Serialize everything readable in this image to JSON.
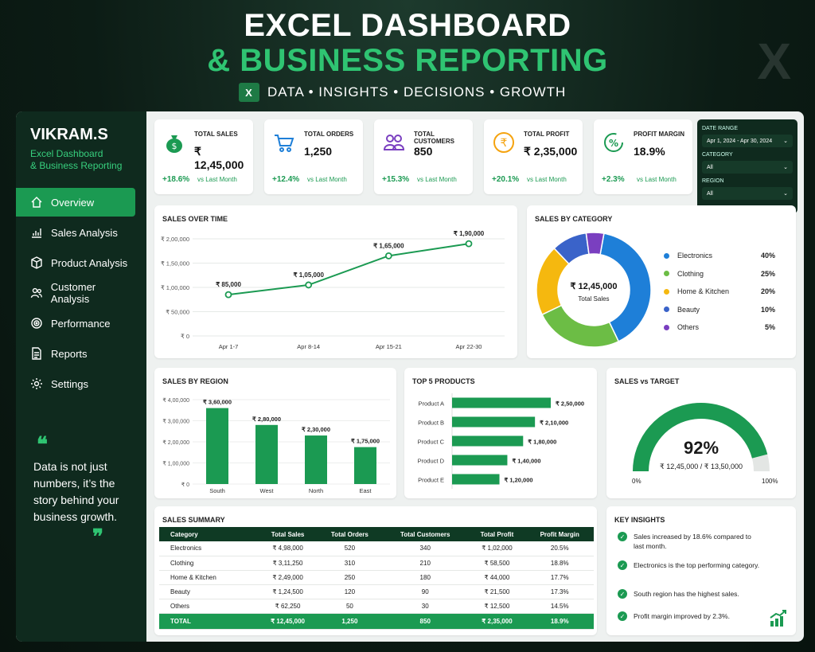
{
  "hero": {
    "line1": "EXCEL DASHBOARD",
    "line2": "& BUSINESS REPORTING",
    "tagline": "DATA • INSIGHTS • DECISIONS • GROWTH",
    "excel_icon": "X"
  },
  "sidebar": {
    "brand": "VIKRAM.S",
    "sub1": "Excel Dashboard",
    "sub2": "& Business Reporting",
    "items": [
      {
        "label": "Overview",
        "icon": "home-icon"
      },
      {
        "label": "Sales Analysis",
        "icon": "bar-chart-icon"
      },
      {
        "label": "Product Analysis",
        "icon": "box-icon"
      },
      {
        "label": "Customer Analysis",
        "icon": "users-icon"
      },
      {
        "label": "Performance",
        "icon": "target-icon"
      },
      {
        "label": "Reports",
        "icon": "document-icon"
      },
      {
        "label": "Settings",
        "icon": "gear-icon"
      }
    ],
    "quote": "Data is not just numbers, it’s the story behind your business growth.",
    "quote_open": "❝",
    "quote_close": "❞"
  },
  "kpis": [
    {
      "label": "TOTAL SALES",
      "value": "₹ 12,45,000",
      "change": "+18.6%",
      "vs": "vs Last Month",
      "icon": "money-bag-icon"
    },
    {
      "label": "TOTAL ORDERS",
      "value": "1,250",
      "change": "+12.4%",
      "vs": "vs Last Month",
      "icon": "cart-icon"
    },
    {
      "label": "TOTAL CUSTOMERS",
      "value": "850",
      "change": "+15.3%",
      "vs": "vs Last Month",
      "icon": "users-icon"
    },
    {
      "label": "TOTAL PROFIT",
      "value": "₹ 2,35,000",
      "change": "+20.1%",
      "vs": "vs Last Month",
      "icon": "rupee-icon"
    },
    {
      "label": "PROFIT MARGIN",
      "value": "18.9%",
      "change": "+2.3%",
      "vs": "vs Last Month",
      "icon": "percent-icon"
    }
  ],
  "filters": {
    "date_label": "DATE RANGE",
    "date_value": "Apr 1, 2024 - Apr 30, 2024",
    "category_label": "CATEGORY",
    "category_value": "All",
    "region_label": "REGION",
    "region_value": "All"
  },
  "sales_over_time": {
    "title": "SALES OVER TIME"
  },
  "sales_by_category": {
    "title": "SALES BY CATEGORY",
    "center_value": "₹ 12,45,000",
    "center_label": "Total Sales"
  },
  "sales_by_region": {
    "title": "SALES BY REGION"
  },
  "top_products": {
    "title": "TOP 5 PRODUCTS"
  },
  "sales_vs_target": {
    "title": "SALES vs TARGET",
    "pct": "92%",
    "detail": "₹ 12,45,000 / ₹ 13,50,000",
    "min": "0%",
    "max": "100%",
    "fraction": 0.92
  },
  "summary": {
    "title": "SALES SUMMARY",
    "headers": [
      "Category",
      "Total Sales",
      "Total Orders",
      "Total Customers",
      "Total Profit",
      "Profit Margin"
    ],
    "rows": [
      [
        "Electronics",
        "₹ 4,98,000",
        "520",
        "340",
        "₹ 1,02,000",
        "20.5%"
      ],
      [
        "Clothing",
        "₹ 3,11,250",
        "310",
        "210",
        "₹ 58,500",
        "18.8%"
      ],
      [
        "Home & Kitchen",
        "₹ 2,49,000",
        "250",
        "180",
        "₹ 44,000",
        "17.7%"
      ],
      [
        "Beauty",
        "₹ 1,24,500",
        "120",
        "90",
        "₹ 21,500",
        "17.3%"
      ],
      [
        "Others",
        "₹ 62,250",
        "50",
        "30",
        "₹ 12,500",
        "14.5%"
      ]
    ],
    "total": [
      "TOTAL",
      "₹ 12,45,000",
      "1,250",
      "850",
      "₹ 2,35,000",
      "18.9%"
    ]
  },
  "insights": {
    "title": "KEY INSIGHTS",
    "items": [
      "Sales increased by 18.6% compared to last month.",
      "Electronics is the top performing category.",
      "South region has the highest sales.",
      "Profit margin improved by 2.3%."
    ]
  },
  "chart_data": [
    {
      "type": "line",
      "title": "SALES OVER TIME",
      "x": [
        "Apr 1-7",
        "Apr 8-14",
        "Apr 15-21",
        "Apr 22-30"
      ],
      "values": [
        85000,
        105000,
        165000,
        190000
      ],
      "data_labels": [
        "₹ 85,000",
        "₹ 1,05,000",
        "₹ 1,65,000",
        "₹ 1,90,000"
      ],
      "yticks": [
        "₹ 0",
        "₹ 50,000",
        "₹ 1,00,000",
        "₹ 1,50,000",
        "₹ 2,00,000"
      ],
      "ylim": [
        0,
        200000
      ],
      "color": "#1b9a52"
    },
    {
      "type": "pie",
      "title": "SALES BY CATEGORY",
      "categories": [
        "Electronics",
        "Clothing",
        "Home & Kitchen",
        "Beauty",
        "Others"
      ],
      "values": [
        40,
        25,
        20,
        10,
        5
      ],
      "labels": [
        "40%",
        "25%",
        "20%",
        "10%",
        "5%"
      ],
      "colors": [
        "#1e7fd8",
        "#6cbd45",
        "#f5b80f",
        "#3a63c9",
        "#7a3fc0"
      ],
      "legend": "right"
    },
    {
      "type": "bar",
      "title": "SALES BY REGION",
      "categories": [
        "South",
        "West",
        "North",
        "East"
      ],
      "values": [
        360000,
        280000,
        230000,
        175000
      ],
      "data_labels": [
        "₹ 3,60,000",
        "₹ 2,80,000",
        "₹ 2,30,000",
        "₹ 1,75,000"
      ],
      "yticks": [
        "₹ 0",
        "₹ 1,00,000",
        "₹ 2,00,000",
        "₹ 3,00,000",
        "₹ 4,00,000"
      ],
      "ylim": [
        0,
        400000
      ],
      "color": "#1b9a52"
    },
    {
      "type": "bar",
      "orientation": "horizontal",
      "title": "TOP 5 PRODUCTS",
      "categories": [
        "Product A",
        "Product B",
        "Product C",
        "Product D",
        "Product E"
      ],
      "values": [
        250000,
        210000,
        180000,
        140000,
        120000
      ],
      "data_labels": [
        "₹ 2,50,000",
        "₹ 2,10,000",
        "₹ 1,80,000",
        "₹ 1,40,000",
        "₹ 1,20,000"
      ],
      "color": "#1b9a52"
    }
  ]
}
